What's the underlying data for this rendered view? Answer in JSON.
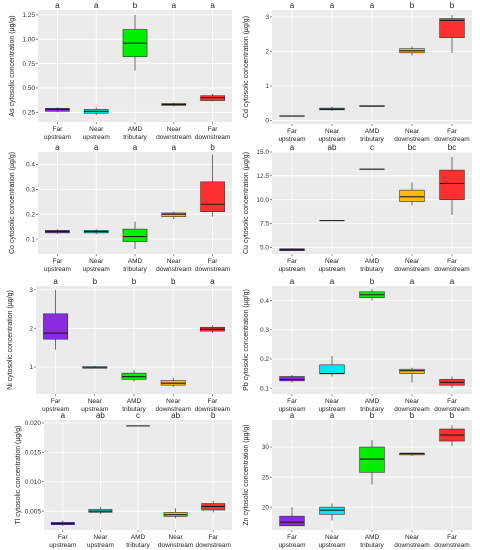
{
  "chart_data": [
    {
      "type": "box",
      "ylabel": "As cytosolic concentration (µg/g)",
      "categories": [
        "Far upstream",
        "Near upstream",
        "AMD tributary",
        "Near downstream",
        "Far downstream"
      ],
      "category_lines": [
        [
          "Far",
          "upstream"
        ],
        [
          "Near",
          "upstream"
        ],
        [
          "AMD",
          "tributary"
        ],
        [
          "Near",
          "downstream"
        ],
        [
          "Far",
          "downstream"
        ]
      ],
      "letters": [
        "a",
        "a",
        "b",
        "a",
        "a"
      ],
      "colors": [
        "#8a2be2",
        "#00e5ee",
        "#00ee00",
        "#ffb90f",
        "#ff3030"
      ],
      "ylim": [
        0.15,
        1.3
      ],
      "yticks": [
        0.25,
        0.5,
        0.75,
        1.0,
        1.25
      ],
      "ytick_labels": [
        "0.25",
        "0.50",
        "0.75",
        "1.00",
        "1.25"
      ],
      "boxes": [
        {
          "min": 0.25,
          "q1": 0.26,
          "median": 0.28,
          "q3": 0.29,
          "max": 0.3
        },
        {
          "min": 0.22,
          "q1": 0.24,
          "median": 0.26,
          "q3": 0.28,
          "max": 0.3
        },
        {
          "min": 0.68,
          "q1": 0.82,
          "median": 0.96,
          "q3": 1.1,
          "max": 1.25
        },
        {
          "min": 0.31,
          "q1": 0.32,
          "median": 0.33,
          "q3": 0.34,
          "max": 0.35
        },
        {
          "min": 0.36,
          "q1": 0.37,
          "median": 0.4,
          "q3": 0.42,
          "max": 0.44
        }
      ]
    },
    {
      "type": "box",
      "ylabel": "Cd cytosolic concentration (µg/g)",
      "categories": [
        "Far upstream",
        "Near upstream",
        "AMD tributary",
        "Near downstream",
        "Far downstream"
      ],
      "category_lines": [
        [
          "Far",
          "upstream"
        ],
        [
          "Near",
          "upstream"
        ],
        [
          "AMD",
          "tributary"
        ],
        [
          "Near",
          "downstream"
        ],
        [
          "Far",
          "downstream"
        ]
      ],
      "letters": [
        "a",
        "a",
        "a",
        "b",
        "b"
      ],
      "colors": [
        "#8a2be2",
        "#00e5ee",
        "#00ee00",
        "#ffb90f",
        "#ff3030"
      ],
      "ylim": [
        -0.1,
        3.2
      ],
      "yticks": [
        0,
        1,
        2,
        3
      ],
      "ytick_labels": [
        "0",
        "1",
        "2",
        "3"
      ],
      "boxes": [
        {
          "min": 0.12,
          "q1": 0.13,
          "median": 0.13,
          "q3": 0.14,
          "max": 0.14
        },
        {
          "min": 0.28,
          "q1": 0.31,
          "median": 0.33,
          "q3": 0.36,
          "max": 0.4
        },
        {
          "min": 0.4,
          "q1": 0.41,
          "median": 0.42,
          "q3": 0.43,
          "max": 0.44
        },
        {
          "min": 1.88,
          "q1": 1.96,
          "median": 2.02,
          "q3": 2.08,
          "max": 2.15
        },
        {
          "min": 1.95,
          "q1": 2.4,
          "median": 2.9,
          "q3": 2.95,
          "max": 3.05
        }
      ]
    },
    {
      "type": "box",
      "ylabel": "Co cytosolic concentration (µg/g)",
      "categories": [
        "Far upstream",
        "Near upstream",
        "AMD tributary",
        "Near downstream",
        "Far downstream"
      ],
      "category_lines": [
        [
          "Far",
          "upstream"
        ],
        [
          "Near",
          "upstream"
        ],
        [
          "AMD",
          "tributary"
        ],
        [
          "Near",
          "downstream"
        ],
        [
          "Far",
          "downstream"
        ]
      ],
      "letters": [
        "a",
        "a",
        "a",
        "a",
        "b"
      ],
      "colors": [
        "#8a2be2",
        "#00e5ee",
        "#00ee00",
        "#ffb90f",
        "#ff3030"
      ],
      "ylim": [
        0.04,
        0.45
      ],
      "yticks": [
        0.1,
        0.2,
        0.3,
        0.4
      ],
      "ytick_labels": [
        "0.1",
        "0.2",
        "0.3",
        "0.4"
      ],
      "boxes": [
        {
          "min": 0.12,
          "q1": 0.125,
          "median": 0.13,
          "q3": 0.135,
          "max": 0.14
        },
        {
          "min": 0.12,
          "q1": 0.125,
          "median": 0.13,
          "q3": 0.135,
          "max": 0.14
        },
        {
          "min": 0.06,
          "q1": 0.09,
          "median": 0.11,
          "q3": 0.14,
          "max": 0.17
        },
        {
          "min": 0.18,
          "q1": 0.19,
          "median": 0.2,
          "q3": 0.205,
          "max": 0.21
        },
        {
          "min": 0.19,
          "q1": 0.21,
          "median": 0.24,
          "q3": 0.33,
          "max": 0.44
        }
      ]
    },
    {
      "type": "box",
      "ylabel": "Cu cytosolic concentration (µg/g)",
      "categories": [
        "Far upstream",
        "Near upstream",
        "AMD tributary",
        "Near downstream",
        "Far downstream"
      ],
      "category_lines": [
        [
          "Far",
          "upstream"
        ],
        [
          "Near",
          "upstream"
        ],
        [
          "AMD",
          "tributary"
        ],
        [
          "Near",
          "downstream"
        ],
        [
          "Far",
          "downstream"
        ]
      ],
      "letters": [
        "a",
        "ab",
        "c",
        "bc",
        "bc"
      ],
      "colors": [
        "#8a2be2",
        "#00e5ee",
        "#00ee00",
        "#ffb90f",
        "#ff3030"
      ],
      "ylim": [
        4.3,
        15.0
      ],
      "yticks": [
        5.0,
        7.5,
        10.0,
        12.5,
        15.0
      ],
      "ytick_labels": [
        "5.0",
        "7.5",
        "10.0",
        "12.5",
        "15.0"
      ],
      "boxes": [
        {
          "min": 4.6,
          "q1": 4.65,
          "median": 4.75,
          "q3": 4.85,
          "max": 4.9
        },
        {
          "min": 7.8,
          "q1": 7.8,
          "median": 7.8,
          "q3": 7.8,
          "max": 7.8
        },
        {
          "min": 13.2,
          "q1": 13.2,
          "median": 13.2,
          "q3": 13.2,
          "max": 13.2
        },
        {
          "min": 9.4,
          "q1": 9.8,
          "median": 10.3,
          "q3": 11.0,
          "max": 11.8
        },
        {
          "min": 8.4,
          "q1": 10.0,
          "median": 11.7,
          "q3": 13.1,
          "max": 14.5
        }
      ]
    },
    {
      "type": "box",
      "ylabel": "Ni cytosolic concentration (µg/g)",
      "categories": [
        "Far upstream",
        "Near upstream",
        "AMD tributary",
        "Near downstream",
        "Far downstream"
      ],
      "category_lines": [
        [
          "Far",
          "upstream"
        ],
        [
          "Near",
          "upstream"
        ],
        [
          "AMD",
          "tributary"
        ],
        [
          "Near",
          "downstream"
        ],
        [
          "Far",
          "downstream"
        ]
      ],
      "letters": [
        "a",
        "b",
        "b",
        "b",
        "a"
      ],
      "colors": [
        "#8a2be2",
        "#00e5ee",
        "#00ee00",
        "#ffb90f",
        "#ff3030"
      ],
      "ylim": [
        0.3,
        3.1
      ],
      "yticks": [
        1,
        2,
        3
      ],
      "ytick_labels": [
        "1",
        "2",
        "3"
      ],
      "boxes": [
        {
          "min": 1.45,
          "q1": 1.72,
          "median": 1.88,
          "q3": 2.38,
          "max": 3.0
        },
        {
          "min": 0.96,
          "q1": 0.97,
          "median": 0.98,
          "q3": 1.01,
          "max": 1.03
        },
        {
          "min": 0.62,
          "q1": 0.68,
          "median": 0.75,
          "q3": 0.84,
          "max": 0.92
        },
        {
          "min": 0.48,
          "q1": 0.53,
          "median": 0.58,
          "q3": 0.65,
          "max": 0.72
        },
        {
          "min": 1.88,
          "q1": 1.93,
          "median": 1.98,
          "q3": 2.03,
          "max": 2.08
        }
      ]
    },
    {
      "type": "box",
      "ylabel": "Pb cytosolic concentration (µg/g)",
      "categories": [
        "Far upstream",
        "Near upstream",
        "AMD tributary",
        "Near downstream",
        "Far downstream"
      ],
      "category_lines": [
        [
          "Far",
          "upstream"
        ],
        [
          "Near",
          "upstream"
        ],
        [
          "AMD",
          "tributary"
        ],
        [
          "Near",
          "downstream"
        ],
        [
          "Far",
          "downstream"
        ]
      ],
      "letters": [
        "a",
        "a",
        "b",
        "a",
        "a"
      ],
      "colors": [
        "#8a2be2",
        "#00e5ee",
        "#00ee00",
        "#ffb90f",
        "#ff3030"
      ],
      "ylim": [
        0.08,
        0.45
      ],
      "yticks": [
        0.1,
        0.2,
        0.3,
        0.4
      ],
      "ytick_labels": [
        "0.1",
        "0.2",
        "0.3",
        "0.4"
      ],
      "boxes": [
        {
          "min": 0.12,
          "q1": 0.125,
          "median": 0.13,
          "q3": 0.14,
          "max": 0.145
        },
        {
          "min": 0.14,
          "q1": 0.15,
          "median": 0.15,
          "q3": 0.18,
          "max": 0.21
        },
        {
          "min": 0.4,
          "q1": 0.41,
          "median": 0.42,
          "q3": 0.43,
          "max": 0.44
        },
        {
          "min": 0.12,
          "q1": 0.15,
          "median": 0.16,
          "q3": 0.165,
          "max": 0.17
        },
        {
          "min": 0.1,
          "q1": 0.11,
          "median": 0.12,
          "q3": 0.13,
          "max": 0.14
        }
      ]
    },
    {
      "type": "box",
      "ylabel": "Tl cytosolic concentration (µg/g)",
      "categories": [
        "Far upstream",
        "Near upstream",
        "AMD tributary",
        "Near downstream",
        "Far downstream"
      ],
      "category_lines": [
        [
          "Far",
          "upstream"
        ],
        [
          "Near",
          "upstream"
        ],
        [
          "AMD",
          "tributary"
        ],
        [
          "Near",
          "downstream"
        ],
        [
          "Far",
          "downstream"
        ]
      ],
      "letters": [
        "a",
        "ab",
        "c",
        "ab",
        "b"
      ],
      "colors": [
        "#8a2be2",
        "#00e5ee",
        "#00ee00",
        "#ffb90f",
        "#ff3030"
      ],
      "ylim": [
        0.0018,
        0.0205
      ],
      "yticks": [
        0.005,
        0.01,
        0.015,
        0.02
      ],
      "ytick_labels": [
        "0.005",
        "0.010",
        "0.015",
        "0.020"
      ],
      "boxes": [
        {
          "min": 0.0025,
          "q1": 0.0027,
          "median": 0.0029,
          "q3": 0.0031,
          "max": 0.0034
        },
        {
          "min": 0.0045,
          "q1": 0.0048,
          "median": 0.005,
          "q3": 0.0053,
          "max": 0.0057
        },
        {
          "min": 0.0195,
          "q1": 0.0195,
          "median": 0.0195,
          "q3": 0.0195,
          "max": 0.0195
        },
        {
          "min": 0.0038,
          "q1": 0.0041,
          "median": 0.0044,
          "q3": 0.0048,
          "max": 0.0055
        },
        {
          "min": 0.0048,
          "q1": 0.0052,
          "median": 0.0058,
          "q3": 0.0063,
          "max": 0.0068
        }
      ]
    },
    {
      "type": "box",
      "ylabel": "Zn cytosolic concentration (µg/g)",
      "categories": [
        "Far upstream",
        "Near upstream",
        "AMD tributary",
        "Near downstream",
        "Far downstream"
      ],
      "category_lines": [
        [
          "Far",
          "upstream"
        ],
        [
          "Near",
          "upstream"
        ],
        [
          "AMD",
          "tributary"
        ],
        [
          "Near",
          "downstream"
        ],
        [
          "Far",
          "downstream"
        ]
      ],
      "letters": [
        "a",
        "a",
        "b",
        "b",
        "b"
      ],
      "colors": [
        "#8a2be2",
        "#00e5ee",
        "#00ee00",
        "#ffb90f",
        "#ff3030"
      ],
      "ylim": [
        16.2,
        34.5
      ],
      "yticks": [
        20,
        25,
        30
      ],
      "ytick_labels": [
        "20",
        "25",
        "30"
      ],
      "boxes": [
        {
          "min": 16.8,
          "q1": 16.9,
          "median": 17.5,
          "q3": 18.5,
          "max": 20.0
        },
        {
          "min": 17.8,
          "q1": 18.8,
          "median": 19.5,
          "q3": 20.0,
          "max": 20.6
        },
        {
          "min": 23.8,
          "q1": 25.8,
          "median": 28.0,
          "q3": 30.0,
          "max": 31.2
        },
        {
          "min": 28.5,
          "q1": 28.7,
          "median": 28.9,
          "q3": 29.0,
          "max": 29.1
        },
        {
          "min": 30.2,
          "q1": 31.0,
          "median": 32.0,
          "q3": 33.0,
          "max": 33.6
        }
      ]
    }
  ]
}
